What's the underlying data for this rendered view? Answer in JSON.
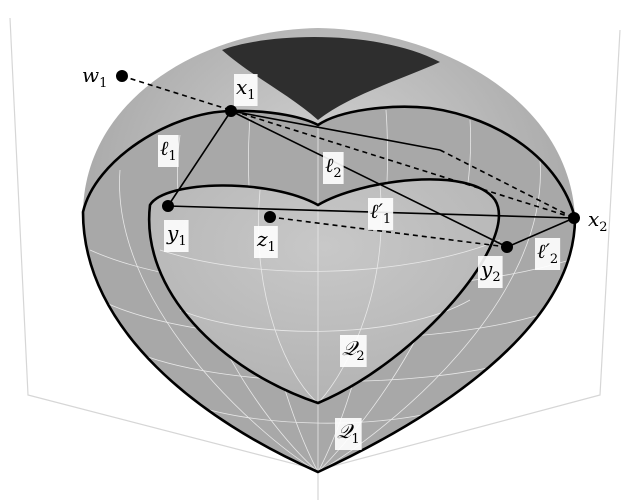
{
  "labels": {
    "w1": {
      "symbol": "w",
      "subscript": "1"
    },
    "x1": {
      "symbol": "x",
      "subscript": "1"
    },
    "x2": {
      "symbol": "x",
      "subscript": "2"
    },
    "y1": {
      "symbol": "y",
      "subscript": "1"
    },
    "y2": {
      "symbol": "y",
      "subscript": "2"
    },
    "z1": {
      "symbol": "z",
      "subscript": "1"
    },
    "l1": {
      "symbol": "ℓ",
      "subscript": "1"
    },
    "l2": {
      "symbol": "ℓ",
      "subscript": "2"
    },
    "lp1": {
      "symbol": "ℓ′",
      "subscript": "1"
    },
    "lp2": {
      "symbol": "ℓ′",
      "subscript": "2"
    },
    "Q1": {
      "symbol": "𝒬",
      "subscript": "1"
    },
    "Q2": {
      "symbol": "𝒬",
      "subscript": "2"
    }
  }
}
